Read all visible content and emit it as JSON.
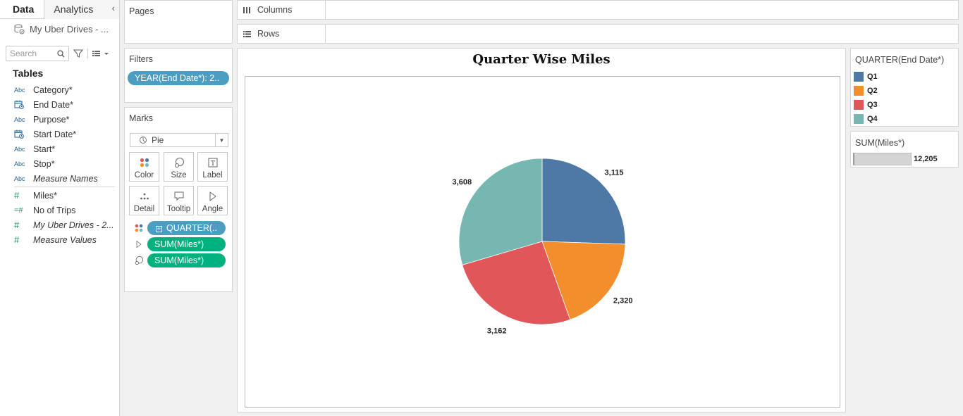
{
  "datapane": {
    "tabs": [
      "Data",
      "Analytics"
    ],
    "datasource": "My Uber Drives - ...",
    "search_placeholder": "Search",
    "tables_label": "Tables",
    "dimensions": [
      {
        "name": "Category*",
        "type": "Abc",
        "italic": false
      },
      {
        "name": "End Date*",
        "type": "date",
        "italic": false
      },
      {
        "name": "Purpose*",
        "type": "Abc",
        "italic": false
      },
      {
        "name": "Start Date*",
        "type": "date",
        "italic": false
      },
      {
        "name": "Start*",
        "type": "Abc",
        "italic": false
      },
      {
        "name": "Stop*",
        "type": "Abc",
        "italic": false
      },
      {
        "name": "Measure Names",
        "type": "Abc",
        "italic": true
      }
    ],
    "measures": [
      {
        "name": "Miles*",
        "type": "#",
        "italic": false
      },
      {
        "name": "No of Trips",
        "type": "=#",
        "italic": false
      },
      {
        "name": "My Uber Drives - 2...",
        "type": "#",
        "italic": true
      },
      {
        "name": "Measure Values",
        "type": "#",
        "italic": true
      }
    ]
  },
  "pages": {
    "title": "Pages"
  },
  "filters": {
    "title": "Filters",
    "pill": "YEAR(End Date*): 2.."
  },
  "marks": {
    "title": "Marks",
    "type": "Pie",
    "buttons": [
      "Color",
      "Size",
      "Label",
      "Detail",
      "Tooltip",
      "Angle"
    ],
    "fields": [
      "QUARTER(..",
      "SUM(Miles*)",
      "SUM(Miles*)"
    ]
  },
  "columns": {
    "label": "Columns"
  },
  "rows": {
    "label": "Rows"
  },
  "sheet": {
    "title": "Quarter Wise Miles"
  },
  "legend": {
    "title": "QUARTER(End Date*)",
    "items": [
      "Q1",
      "Q2",
      "Q3",
      "Q4"
    ]
  },
  "size_legend": {
    "title": "SUM(Miles*)",
    "value": "12,205"
  },
  "chart_data": {
    "type": "pie",
    "title": "Quarter Wise Miles",
    "categories": [
      "Q1",
      "Q2",
      "Q3",
      "Q4"
    ],
    "values": [
      3115,
      2320,
      3162,
      3608
    ],
    "labels": [
      "3,115",
      "2,320",
      "3,162",
      "3,608"
    ],
    "colors": [
      "#4e79a7",
      "#f28e2b",
      "#e15759",
      "#76b7b2"
    ],
    "total": 12205
  }
}
